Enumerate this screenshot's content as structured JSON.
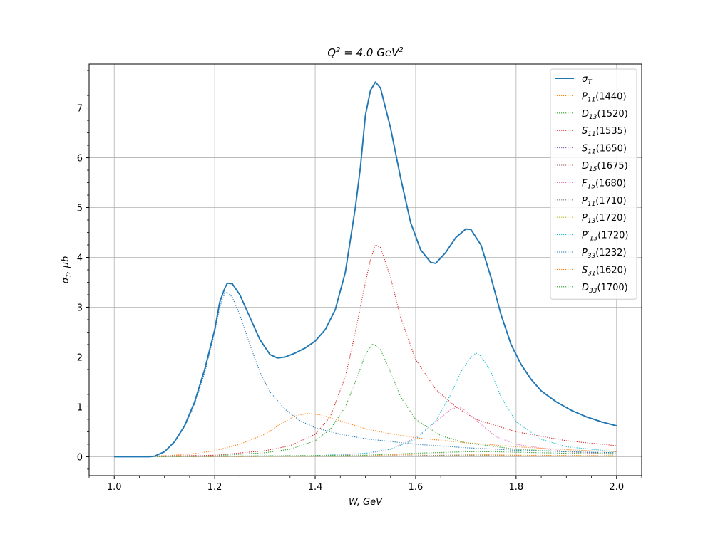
{
  "chart_data": {
    "type": "line",
    "title": {
      "main": "Q",
      "sup": "2",
      "mid": " = 4.0 GeV",
      "sup2": "2"
    },
    "xlabel": "W, GeV",
    "ylabel": {
      "main": "σ",
      "sub": "T",
      "rest": ", μb"
    },
    "xlim": [
      0.95,
      2.05
    ],
    "ylim": [
      -0.38,
      7.88
    ],
    "xticks": [
      1.0,
      1.2,
      1.4,
      1.6,
      1.8,
      2.0
    ],
    "xtick_labels": [
      "1.0",
      "1.2",
      "1.4",
      "1.6",
      "1.8",
      "2.0"
    ],
    "yticks": [
      0,
      1,
      2,
      3,
      4,
      5,
      6,
      7
    ],
    "ytick_labels": [
      "0",
      "1",
      "2",
      "3",
      "4",
      "5",
      "6",
      "7"
    ],
    "grid": true,
    "legend_position": "top-right",
    "series": [
      {
        "sym": "σ",
        "sub": "T",
        "suffix": "",
        "color": "#1f77b4",
        "style": "solid",
        "points": [
          [
            1.0,
            0
          ],
          [
            1.07,
            0
          ],
          [
            1.08,
            0.01
          ],
          [
            1.1,
            0.1
          ],
          [
            1.12,
            0.3
          ],
          [
            1.14,
            0.62
          ],
          [
            1.16,
            1.1
          ],
          [
            1.18,
            1.75
          ],
          [
            1.2,
            2.55
          ],
          [
            1.21,
            3.1
          ],
          [
            1.22,
            3.38
          ],
          [
            1.225,
            3.48
          ],
          [
            1.235,
            3.47
          ],
          [
            1.25,
            3.25
          ],
          [
            1.27,
            2.8
          ],
          [
            1.29,
            2.35
          ],
          [
            1.31,
            2.05
          ],
          [
            1.325,
            1.98
          ],
          [
            1.34,
            2.0
          ],
          [
            1.36,
            2.08
          ],
          [
            1.38,
            2.18
          ],
          [
            1.4,
            2.32
          ],
          [
            1.42,
            2.55
          ],
          [
            1.44,
            2.95
          ],
          [
            1.46,
            3.7
          ],
          [
            1.48,
            5.0
          ],
          [
            1.49,
            5.8
          ],
          [
            1.5,
            6.85
          ],
          [
            1.51,
            7.35
          ],
          [
            1.52,
            7.52
          ],
          [
            1.53,
            7.4
          ],
          [
            1.55,
            6.6
          ],
          [
            1.57,
            5.6
          ],
          [
            1.59,
            4.7
          ],
          [
            1.61,
            4.15
          ],
          [
            1.63,
            3.9
          ],
          [
            1.64,
            3.88
          ],
          [
            1.66,
            4.1
          ],
          [
            1.68,
            4.4
          ],
          [
            1.7,
            4.57
          ],
          [
            1.71,
            4.56
          ],
          [
            1.73,
            4.25
          ],
          [
            1.75,
            3.6
          ],
          [
            1.77,
            2.85
          ],
          [
            1.79,
            2.25
          ],
          [
            1.81,
            1.85
          ],
          [
            1.83,
            1.55
          ],
          [
            1.85,
            1.32
          ],
          [
            1.88,
            1.1
          ],
          [
            1.91,
            0.93
          ],
          [
            1.94,
            0.8
          ],
          [
            1.97,
            0.7
          ],
          [
            2.0,
            0.62
          ]
        ]
      },
      {
        "sym": "P",
        "sub": "11",
        "suffix": "(1440)",
        "color": "#ff7f0e",
        "style": "dotted",
        "points": [
          [
            1.0,
            0
          ],
          [
            1.1,
            0.02
          ],
          [
            1.15,
            0.05
          ],
          [
            1.2,
            0.12
          ],
          [
            1.25,
            0.25
          ],
          [
            1.3,
            0.45
          ],
          [
            1.33,
            0.65
          ],
          [
            1.36,
            0.82
          ],
          [
            1.385,
            0.87
          ],
          [
            1.41,
            0.84
          ],
          [
            1.45,
            0.72
          ],
          [
            1.5,
            0.56
          ],
          [
            1.55,
            0.46
          ],
          [
            1.6,
            0.38
          ],
          [
            1.7,
            0.28
          ],
          [
            1.8,
            0.2
          ],
          [
            1.9,
            0.14
          ],
          [
            2.0,
            0.1
          ]
        ]
      },
      {
        "sym": "D",
        "sub": "13",
        "suffix": "(1520)",
        "color": "#2ca02c",
        "style": "dotted",
        "points": [
          [
            1.0,
            0
          ],
          [
            1.2,
            0.02
          ],
          [
            1.3,
            0.08
          ],
          [
            1.35,
            0.15
          ],
          [
            1.4,
            0.32
          ],
          [
            1.43,
            0.55
          ],
          [
            1.46,
            1.0
          ],
          [
            1.48,
            1.5
          ],
          [
            1.5,
            2.05
          ],
          [
            1.515,
            2.27
          ],
          [
            1.53,
            2.15
          ],
          [
            1.55,
            1.7
          ],
          [
            1.57,
            1.2
          ],
          [
            1.6,
            0.75
          ],
          [
            1.65,
            0.42
          ],
          [
            1.7,
            0.28
          ],
          [
            1.8,
            0.15
          ],
          [
            1.9,
            0.1
          ],
          [
            2.0,
            0.06
          ]
        ]
      },
      {
        "sym": "S",
        "sub": "11",
        "suffix": "(1535)",
        "color": "#d62728",
        "style": "dotted",
        "points": [
          [
            1.0,
            0
          ],
          [
            1.2,
            0.03
          ],
          [
            1.3,
            0.12
          ],
          [
            1.35,
            0.22
          ],
          [
            1.4,
            0.45
          ],
          [
            1.43,
            0.8
          ],
          [
            1.46,
            1.6
          ],
          [
            1.48,
            2.5
          ],
          [
            1.5,
            3.5
          ],
          [
            1.51,
            3.95
          ],
          [
            1.52,
            4.25
          ],
          [
            1.53,
            4.2
          ],
          [
            1.55,
            3.6
          ],
          [
            1.57,
            2.8
          ],
          [
            1.6,
            1.95
          ],
          [
            1.64,
            1.35
          ],
          [
            1.68,
            1.0
          ],
          [
            1.72,
            0.75
          ],
          [
            1.8,
            0.5
          ],
          [
            1.9,
            0.32
          ],
          [
            2.0,
            0.22
          ]
        ]
      },
      {
        "sym": "S",
        "sub": "11",
        "suffix": "(1650)",
        "color": "#9467bd",
        "style": "dotted",
        "points": [
          [
            1.0,
            0
          ],
          [
            1.5,
            0.01
          ],
          [
            1.6,
            0.02
          ],
          [
            1.65,
            0.03
          ],
          [
            1.7,
            0.03
          ],
          [
            1.8,
            0.02
          ],
          [
            2.0,
            0.01
          ]
        ]
      },
      {
        "sym": "D",
        "sub": "15",
        "suffix": "(1675)",
        "color": "#8c564b",
        "style": "dotted",
        "points": [
          [
            1.0,
            0
          ],
          [
            1.5,
            0.01
          ],
          [
            1.6,
            0.02
          ],
          [
            1.67,
            0.03
          ],
          [
            1.75,
            0.02
          ],
          [
            2.0,
            0.01
          ]
        ]
      },
      {
        "sym": "F",
        "sub": "15",
        "suffix": "(1680)",
        "color": "#e377c2",
        "style": "dotted",
        "points": [
          [
            1.0,
            0
          ],
          [
            1.4,
            0.01
          ],
          [
            1.5,
            0.06
          ],
          [
            1.55,
            0.15
          ],
          [
            1.6,
            0.38
          ],
          [
            1.64,
            0.7
          ],
          [
            1.67,
            0.95
          ],
          [
            1.685,
            1.0
          ],
          [
            1.7,
            0.92
          ],
          [
            1.73,
            0.65
          ],
          [
            1.76,
            0.4
          ],
          [
            1.8,
            0.25
          ],
          [
            1.9,
            0.1
          ],
          [
            2.0,
            0.05
          ]
        ]
      },
      {
        "sym": "P",
        "sub": "11",
        "suffix": "(1710)",
        "color": "#7f7f7f",
        "style": "dotted",
        "points": [
          [
            1.0,
            0
          ],
          [
            1.5,
            0.01
          ],
          [
            1.7,
            0.03
          ],
          [
            1.8,
            0.02
          ],
          [
            2.0,
            0.01
          ]
        ]
      },
      {
        "sym": "P",
        "sub": "13",
        "suffix": "(1720)",
        "color": "#bcbd22",
        "style": "dotted",
        "points": [
          [
            1.0,
            0
          ],
          [
            1.5,
            0.01
          ],
          [
            1.7,
            0.02
          ],
          [
            2.0,
            0.01
          ]
        ]
      },
      {
        "sym": "P′",
        "sub": "13",
        "suffix": "(1720)",
        "color": "#17becf",
        "style": "dotted",
        "points": [
          [
            1.0,
            0
          ],
          [
            1.4,
            0.02
          ],
          [
            1.5,
            0.07
          ],
          [
            1.55,
            0.15
          ],
          [
            1.6,
            0.35
          ],
          [
            1.64,
            0.72
          ],
          [
            1.67,
            1.25
          ],
          [
            1.69,
            1.7
          ],
          [
            1.71,
            2.0
          ],
          [
            1.72,
            2.08
          ],
          [
            1.73,
            2.02
          ],
          [
            1.75,
            1.7
          ],
          [
            1.77,
            1.2
          ],
          [
            1.8,
            0.7
          ],
          [
            1.85,
            0.35
          ],
          [
            1.9,
            0.2
          ],
          [
            2.0,
            0.1
          ]
        ]
      },
      {
        "sym": "P",
        "sub": "33",
        "suffix": "(1232)",
        "color": "#1f77b4",
        "style": "dotted",
        "points": [
          [
            1.0,
            0
          ],
          [
            1.07,
            0
          ],
          [
            1.08,
            0.01
          ],
          [
            1.1,
            0.1
          ],
          [
            1.12,
            0.3
          ],
          [
            1.14,
            0.6
          ],
          [
            1.16,
            1.05
          ],
          [
            1.18,
            1.68
          ],
          [
            1.2,
            2.5
          ],
          [
            1.21,
            3.0
          ],
          [
            1.22,
            3.28
          ],
          [
            1.225,
            3.3
          ],
          [
            1.235,
            3.2
          ],
          [
            1.25,
            2.85
          ],
          [
            1.27,
            2.25
          ],
          [
            1.29,
            1.7
          ],
          [
            1.31,
            1.3
          ],
          [
            1.34,
            0.95
          ],
          [
            1.37,
            0.72
          ],
          [
            1.4,
            0.58
          ],
          [
            1.45,
            0.45
          ],
          [
            1.5,
            0.36
          ],
          [
            1.6,
            0.25
          ],
          [
            1.7,
            0.18
          ],
          [
            1.8,
            0.13
          ],
          [
            1.9,
            0.1
          ],
          [
            2.0,
            0.08
          ]
        ]
      },
      {
        "sym": "S",
        "sub": "31",
        "suffix": "(1620)",
        "color": "#ff7f0e",
        "style": "dotted",
        "points": [
          [
            1.0,
            0
          ],
          [
            1.5,
            0.02
          ],
          [
            1.6,
            0.05
          ],
          [
            1.65,
            0.06
          ],
          [
            1.7,
            0.05
          ],
          [
            1.8,
            0.03
          ],
          [
            2.0,
            0.02
          ]
        ]
      },
      {
        "sym": "D",
        "sub": "33",
        "suffix": "(1700)",
        "color": "#2ca02c",
        "style": "dotted",
        "points": [
          [
            1.0,
            0
          ],
          [
            1.5,
            0.03
          ],
          [
            1.6,
            0.07
          ],
          [
            1.7,
            0.1
          ],
          [
            1.75,
            0.1
          ],
          [
            1.85,
            0.08
          ],
          [
            2.0,
            0.05
          ]
        ]
      }
    ]
  }
}
